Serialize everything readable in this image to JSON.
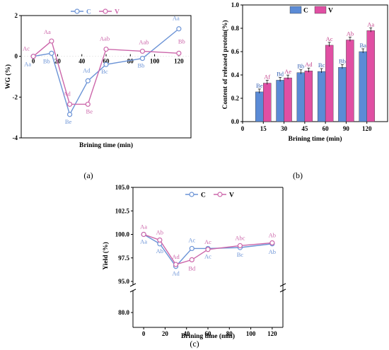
{
  "colors": {
    "C": "#6b93d6",
    "V": "#cc66aa",
    "C_bar": "#5b8bd6",
    "V_bar": "#e04fa3"
  },
  "chart_data": [
    {
      "type": "line",
      "panel_label": "(a)",
      "xlabel": "Brining time (min)",
      "ylabel": "WG (%)",
      "xlim": [
        -10,
        130
      ],
      "ylim": [
        -4,
        2
      ],
      "xticks": [
        0,
        20,
        40,
        60,
        80,
        100,
        120
      ],
      "yticks": [
        -4,
        -2,
        0,
        2
      ],
      "x": [
        0,
        15,
        30,
        45,
        60,
        90,
        120
      ],
      "series": [
        {
          "name": "C",
          "values": [
            0,
            0.15,
            -2.85,
            -1.2,
            -0.4,
            -0.1,
            1.35
          ],
          "labels": [
            "Aa",
            "Bb",
            "Be",
            "Ad",
            "Bc",
            "Bb",
            "Aa"
          ]
        },
        {
          "name": "V",
          "values": [
            0,
            0.75,
            -2.35,
            -2.35,
            0.35,
            0.25,
            0.15
          ],
          "labels": [
            "Ac",
            "Aa",
            "Ad",
            "Be",
            "Aab",
            "Aab",
            "Bb"
          ]
        }
      ],
      "legend": "top-center"
    },
    {
      "type": "bar",
      "panel_label": "(b)",
      "xlabel": "Brining time (min)",
      "ylabel": "Content of released protein(%)",
      "ylim": [
        0,
        1.0
      ],
      "yticks": [
        0.0,
        0.2,
        0.4,
        0.6,
        0.8,
        1.0
      ],
      "xticks_labels": [
        "0",
        "15",
        "30",
        "45",
        "60",
        "90",
        "120"
      ],
      "categories": [
        "15",
        "30",
        "45",
        "60",
        "90",
        "120"
      ],
      "series": [
        {
          "name": "C",
          "values": [
            0.255,
            0.355,
            0.42,
            0.43,
            0.465,
            0.6
          ],
          "labels": [
            "Be",
            "Bd",
            "Bb",
            "Bc",
            "Bb",
            "Ba"
          ]
        },
        {
          "name": "V",
          "values": [
            0.33,
            0.375,
            0.435,
            0.655,
            0.7,
            0.78
          ],
          "labels": [
            "Af",
            "Ae",
            "Ad",
            "Ac",
            "Ab",
            "Aa"
          ]
        }
      ],
      "legend": "top-center"
    },
    {
      "type": "line",
      "panel_label": "(c)",
      "xlabel": "Brining time (min)",
      "ylabel": "Yield (%)",
      "xlim": [
        -10,
        130
      ],
      "ylim": [
        80,
        105
      ],
      "axis_break": [
        82,
        94
      ],
      "xticks": [
        0,
        20,
        40,
        60,
        80,
        100,
        120
      ],
      "yticks": [
        "80.0",
        "95.0",
        "97.5",
        "100.0",
        "102.5",
        "105.0"
      ],
      "x": [
        0,
        15,
        30,
        45,
        60,
        90,
        120
      ],
      "series": [
        {
          "name": "C",
          "values": [
            100.0,
            99.0,
            96.6,
            98.5,
            98.5,
            98.6,
            99.0
          ],
          "labels": [
            "Aa",
            "Ab",
            "Ad",
            "Ac",
            "Ac",
            "Bc",
            "Ab"
          ]
        },
        {
          "name": "V",
          "values": [
            100.0,
            99.4,
            96.8,
            97.3,
            98.4,
            98.8,
            99.1
          ],
          "labels": [
            "Aa",
            "Ab",
            "Ad",
            "Bd",
            "Ac",
            "Abc",
            "Ab"
          ]
        }
      ],
      "legend": "top-center"
    }
  ]
}
